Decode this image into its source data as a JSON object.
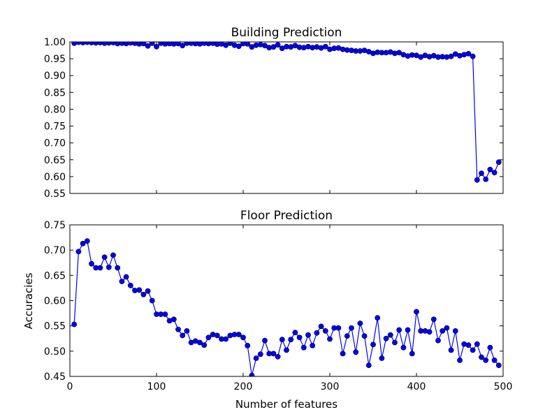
{
  "chart_data": [
    {
      "type": "line",
      "title": "Building Prediction",
      "xlabel": "",
      "ylabel": "",
      "xlim": [
        0,
        500
      ],
      "ylim": [
        0.55,
        1.0
      ],
      "xticks": [
        0,
        100,
        200,
        300,
        400,
        500
      ],
      "show_x_tick_labels": false,
      "yticks": [
        "0.55",
        "0.60",
        "0.65",
        "0.70",
        "0.75",
        "0.80",
        "0.85",
        "0.90",
        "0.95",
        "1.00"
      ],
      "grid": false,
      "legend": "none",
      "series": [
        {
          "color": "#0000ff",
          "marker": "circle",
          "x": [
            5,
            10,
            15,
            20,
            25,
            30,
            35,
            40,
            45,
            50,
            55,
            60,
            65,
            70,
            75,
            80,
            85,
            90,
            95,
            100,
            105,
            110,
            115,
            120,
            125,
            130,
            135,
            140,
            145,
            150,
            155,
            160,
            165,
            170,
            175,
            180,
            185,
            190,
            195,
            200,
            205,
            210,
            215,
            220,
            225,
            230,
            235,
            240,
            245,
            250,
            255,
            260,
            265,
            270,
            275,
            280,
            285,
            290,
            295,
            300,
            305,
            310,
            315,
            320,
            325,
            330,
            335,
            340,
            345,
            350,
            355,
            360,
            365,
            370,
            375,
            380,
            385,
            390,
            395,
            400,
            405,
            410,
            415,
            420,
            425,
            430,
            435,
            440,
            445,
            450,
            455,
            460,
            465,
            470,
            475,
            480,
            485,
            490,
            495
          ],
          "y": [
            0.996,
            0.999,
            0.998,
            0.999,
            0.998,
            0.997,
            0.998,
            0.996,
            0.997,
            0.998,
            0.995,
            0.996,
            0.995,
            0.997,
            0.996,
            0.994,
            0.995,
            0.988,
            0.996,
            0.986,
            0.996,
            0.994,
            0.995,
            0.994,
            0.995,
            0.989,
            0.996,
            0.996,
            0.995,
            0.994,
            0.996,
            0.995,
            0.996,
            0.993,
            0.994,
            0.99,
            0.996,
            0.99,
            0.987,
            0.995,
            0.994,
            0.985,
            0.99,
            0.992,
            0.989,
            0.983,
            0.985,
            0.991,
            0.981,
            0.986,
            0.985,
            0.989,
            0.984,
            0.983,
            0.986,
            0.983,
            0.985,
            0.982,
            0.986,
            0.978,
            0.981,
            0.982,
            0.978,
            0.976,
            0.975,
            0.973,
            0.973,
            0.975,
            0.971,
            0.966,
            0.969,
            0.968,
            0.968,
            0.97,
            0.966,
            0.968,
            0.962,
            0.958,
            0.961,
            0.96,
            0.955,
            0.96,
            0.956,
            0.959,
            0.955,
            0.956,
            0.955,
            0.957,
            0.964,
            0.959,
            0.962,
            0.965,
            0.957,
            0.59,
            0.61,
            0.592,
            0.621,
            0.612,
            0.643
          ]
        }
      ]
    },
    {
      "type": "line",
      "title": "Floor Prediction",
      "xlabel": "Number of features",
      "ylabel": "Accuracies",
      "xlim": [
        0,
        500
      ],
      "ylim": [
        0.45,
        0.75
      ],
      "xticks": [
        0,
        100,
        200,
        300,
        400,
        500
      ],
      "show_x_tick_labels": true,
      "yticks": [
        "0.45",
        "0.50",
        "0.55",
        "0.60",
        "0.65",
        "0.70",
        "0.75"
      ],
      "grid": false,
      "legend": "none",
      "series": [
        {
          "color": "#0000ff",
          "marker": "circle",
          "x": [
            5,
            10,
            15,
            20,
            25,
            30,
            35,
            40,
            45,
            50,
            55,
            60,
            65,
            70,
            75,
            80,
            85,
            90,
            95,
            100,
            105,
            110,
            115,
            120,
            125,
            130,
            135,
            140,
            145,
            150,
            155,
            160,
            165,
            170,
            175,
            180,
            185,
            190,
            195,
            200,
            205,
            210,
            215,
            220,
            225,
            230,
            235,
            240,
            245,
            250,
            255,
            260,
            265,
            270,
            275,
            280,
            285,
            290,
            295,
            300,
            305,
            310,
            315,
            320,
            325,
            330,
            335,
            340,
            345,
            350,
            355,
            360,
            365,
            370,
            375,
            380,
            385,
            390,
            395,
            400,
            405,
            410,
            415,
            420,
            425,
            430,
            435,
            440,
            445,
            450,
            455,
            460,
            465,
            470,
            475,
            480,
            485,
            490,
            495
          ],
          "y": [
            0.553,
            0.697,
            0.713,
            0.718,
            0.673,
            0.665,
            0.665,
            0.686,
            0.666,
            0.69,
            0.665,
            0.638,
            0.647,
            0.63,
            0.62,
            0.621,
            0.612,
            0.619,
            0.6,
            0.573,
            0.573,
            0.573,
            0.56,
            0.563,
            0.543,
            0.531,
            0.54,
            0.517,
            0.52,
            0.517,
            0.512,
            0.527,
            0.533,
            0.531,
            0.524,
            0.524,
            0.531,
            0.533,
            0.533,
            0.527,
            0.511,
            0.452,
            0.486,
            0.494,
            0.521,
            0.495,
            0.495,
            0.489,
            0.523,
            0.502,
            0.523,
            0.537,
            0.527,
            0.507,
            0.532,
            0.511,
            0.536,
            0.549,
            0.54,
            0.524,
            0.546,
            0.546,
            0.495,
            0.53,
            0.546,
            0.498,
            0.555,
            0.53,
            0.472,
            0.513,
            0.566,
            0.486,
            0.525,
            0.532,
            0.517,
            0.542,
            0.507,
            0.542,
            0.495,
            0.578,
            0.54,
            0.54,
            0.538,
            0.563,
            0.521,
            0.54,
            0.546,
            0.502,
            0.54,
            0.482,
            0.514,
            0.512,
            0.502,
            0.514,
            0.488,
            0.482,
            0.507,
            0.482,
            0.472
          ]
        }
      ]
    }
  ]
}
